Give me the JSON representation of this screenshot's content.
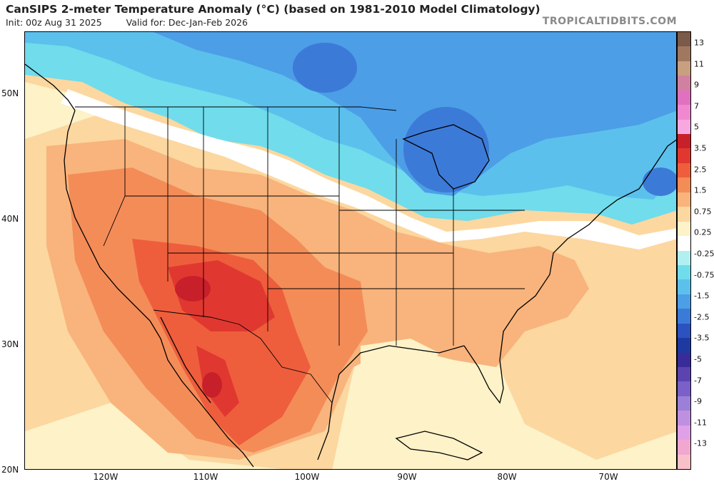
{
  "header": {
    "title": "CanSIPS 2-meter Temperature Anomaly (°C) (based on 1981-2010 Model Climatology)",
    "init": "Init: 00z Aug 31 2025",
    "valid": "Valid for: Dec-Jan-Feb 2026",
    "credit": "TROPICALTIDBITS.COM"
  },
  "axes": {
    "latitude_labels": [
      "50N",
      "40N",
      "30N",
      "20N"
    ],
    "longitude_labels": [
      "120W",
      "110W",
      "100W",
      "90W",
      "80W",
      "70W"
    ]
  },
  "colorbar": {
    "labels": [
      "13",
      "11",
      "9",
      "7",
      "5",
      "3.5",
      "2.5",
      "1.5",
      "0.75",
      "0.25",
      "-0.25",
      "-0.75",
      "-1.5",
      "-2.5",
      "-3.5",
      "-5",
      "-7",
      "-9",
      "-11",
      "-13"
    ],
    "colors": [
      "#7a5a48",
      "#a07860",
      "#c8a080",
      "#d080a0",
      "#e070c0",
      "#f088d0",
      "#f8a8e0",
      "#c8202a",
      "#e03830",
      "#ee5e3c",
      "#f48c58",
      "#f8b47c",
      "#fcd7a0",
      "#fdf2c8",
      "#ffffff",
      "#b0f0f0",
      "#70dcec",
      "#5cc0ec",
      "#4c9ee6",
      "#3c7ad8",
      "#2c52c0",
      "#1e3aa0",
      "#3a2c98",
      "#5c44b0",
      "#7a60c8",
      "#9c80d8",
      "#c090e0",
      "#e0a0e8",
      "#f0a8d0",
      "#f8c0c8"
    ]
  },
  "map": {
    "description_colors": {
      "cold_deep": "#3c7ad8",
      "cold_mid": "#4c9ee6",
      "cold_light": "#70dcec",
      "neutral": "#ffffff",
      "warm_light": "#fdf2c8",
      "warm_mid": "#fcd7a0",
      "warm": "#f8b47c",
      "warm_strong": "#f48c58",
      "hot": "#ee5e3c",
      "hotter": "#e03830",
      "hottest": "#c8202a"
    }
  }
}
